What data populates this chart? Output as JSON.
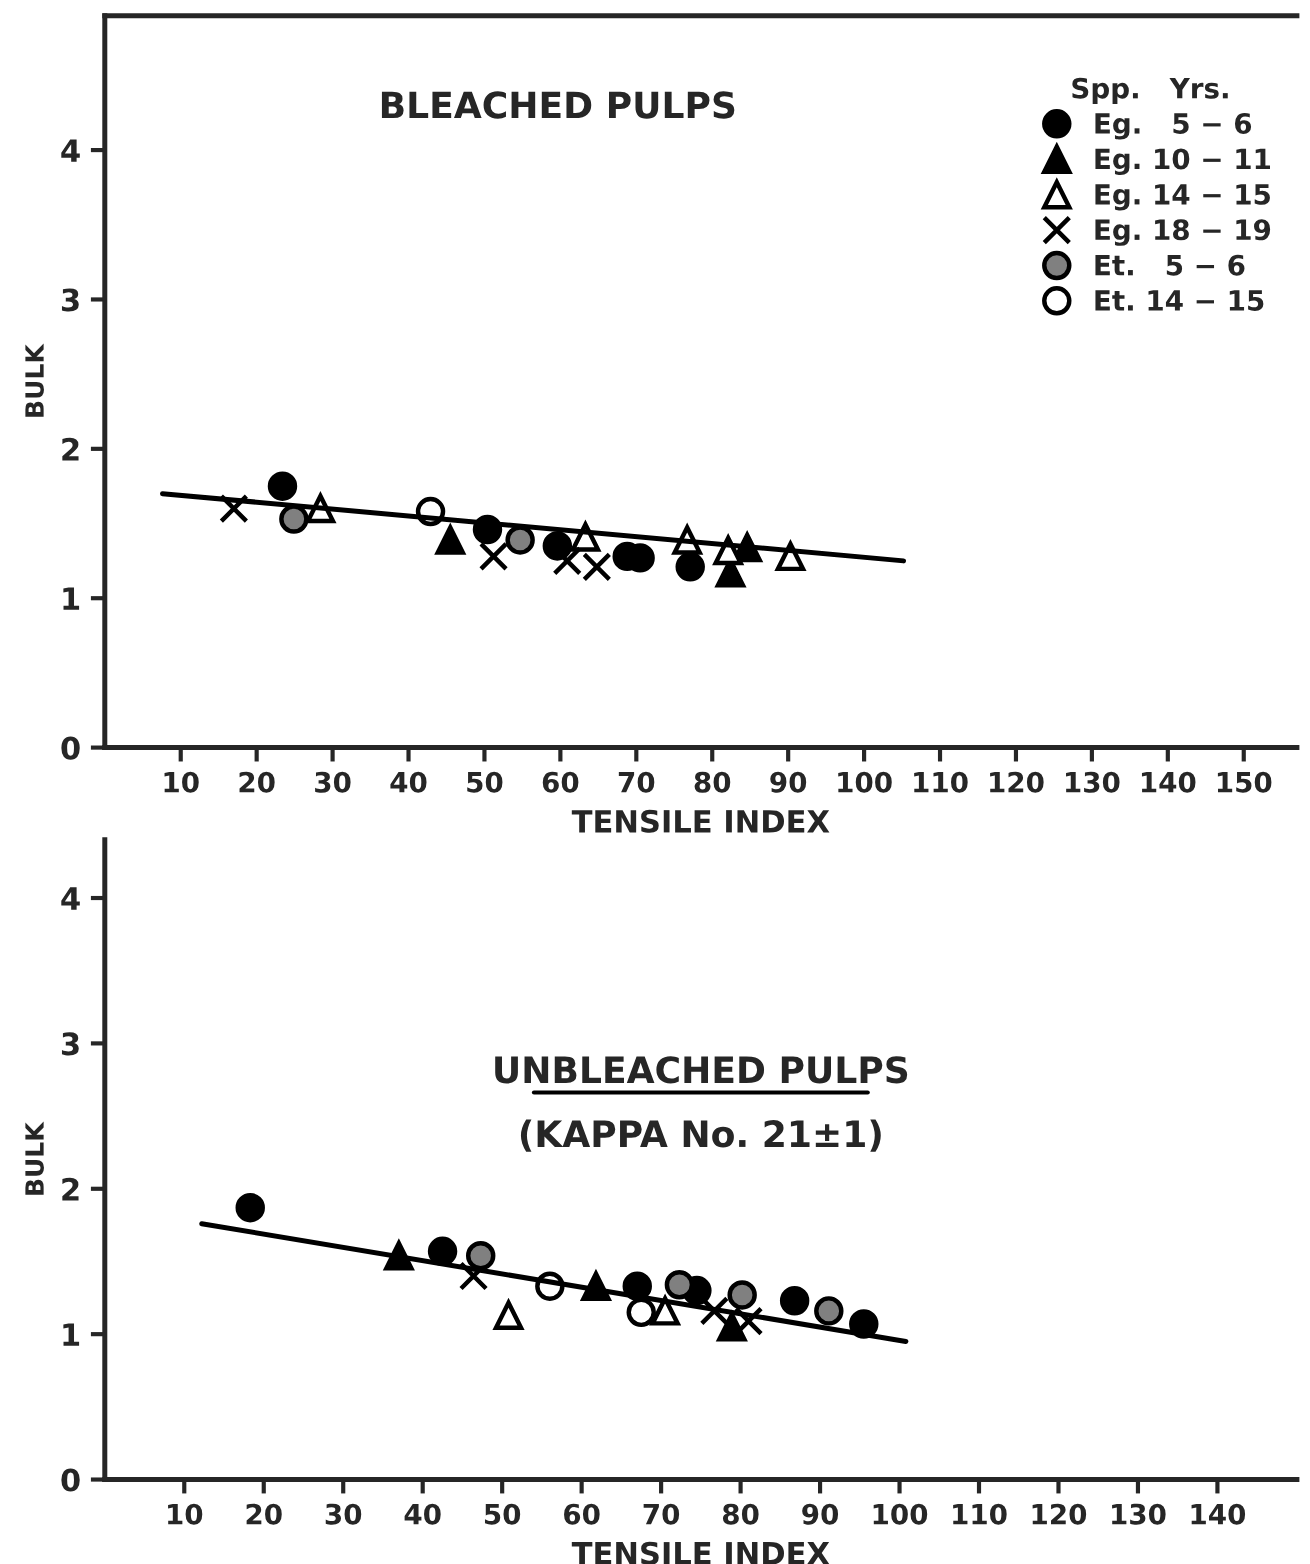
{
  "chart_data": [
    {
      "type": "scatter",
      "title": "BLEACHED PULPS",
      "xlabel": "TENSILE INDEX",
      "ylabel": "BULK",
      "legend_title": "Spp.   Yrs.",
      "legend": "top right",
      "grid": false,
      "xlim": [
        0,
        157
      ],
      "ylim": [
        0,
        4.9
      ],
      "xticks": [
        10,
        20,
        30,
        40,
        50,
        60,
        70,
        80,
        90,
        100,
        110,
        120,
        130,
        140,
        150
      ],
      "yticks": [
        0,
        1,
        2,
        3,
        4
      ],
      "series": [
        {
          "name": "Eg.   5 − 6",
          "color": "#000000",
          "marker": "circle",
          "x": [
            23.4,
            50.4,
            59.6,
            68.8,
            70.5,
            77.1
          ],
          "values": [
            1.75,
            1.46,
            1.35,
            1.28,
            1.27,
            1.21
          ]
        },
        {
          "name": "Eg. 10 − 11",
          "color": "#000000",
          "marker": "triangle",
          "x": [
            45.5,
            82.4,
            84.6
          ],
          "values": [
            1.39,
            1.17,
            1.34
          ]
        },
        {
          "name": "Eg. 14 − 15",
          "color": "#ffffff",
          "marker": "triangle",
          "x": [
            28.4,
            63.3,
            76.7,
            82.1,
            90.3
          ],
          "values": [
            1.6,
            1.41,
            1.39,
            1.32,
            1.28
          ]
        },
        {
          "name": "Eg. 18 − 19",
          "color": "#000000",
          "marker": "cross",
          "x": [
            17,
            51.2,
            60.9,
            64.8
          ],
          "values": [
            1.6,
            1.28,
            1.25,
            1.21
          ]
        },
        {
          "name": "Et.   5 − 6",
          "color": "#808080",
          "marker": "circle",
          "x": [
            24.9,
            54.7
          ],
          "values": [
            1.53,
            1.39
          ]
        },
        {
          "name": "Et. 14 − 15",
          "color": "#ffffff",
          "marker": "circle",
          "x": [
            42.9
          ],
          "values": [
            1.58
          ]
        },
        {
          "type": "line",
          "color": "#000000",
          "x": [
            7.6,
            105.2
          ],
          "values": [
            1.7,
            1.25
          ]
        }
      ]
    },
    {
      "type": "scatter",
      "title": "UNBLEACHED PULPS",
      "subtitle": "(KAPPA No. 21±1)",
      "xlabel": "TENSILE INDEX",
      "ylabel": "BULK",
      "grid": false,
      "xlim": [
        0,
        150
      ],
      "ylim": [
        0,
        4.4
      ],
      "xticks": [
        10,
        20,
        30,
        40,
        50,
        60,
        70,
        80,
        90,
        100,
        110,
        120,
        130,
        140
      ],
      "yticks": [
        0,
        1,
        2,
        3,
        4
      ],
      "series": [
        {
          "color": "#000000",
          "marker": "circle",
          "x": [
            18.3,
            42.5,
            67,
            74.5,
            86.8,
            95.5
          ],
          "values": [
            1.87,
            1.57,
            1.33,
            1.3,
            1.23,
            1.07
          ]
        },
        {
          "color": "#000000",
          "marker": "triangle",
          "x": [
            37,
            61.8,
            78.9
          ],
          "values": [
            1.54,
            1.33,
            1.05
          ]
        },
        {
          "color": "#ffffff",
          "marker": "triangle",
          "x": [
            50.8,
            70.5
          ],
          "values": [
            1.13,
            1.16
          ]
        },
        {
          "color": "#000000",
          "marker": "cross",
          "x": [
            46.4,
            76.7,
            81
          ],
          "values": [
            1.4,
            1.16,
            1.09
          ]
        },
        {
          "color": "#808080",
          "marker": "circle",
          "x": [
            47.3,
            72.3,
            80.2,
            91.1
          ],
          "values": [
            1.54,
            1.34,
            1.27,
            1.16
          ]
        },
        {
          "color": "#ffffff",
          "marker": "circle",
          "x": [
            56,
            67.5
          ],
          "values": [
            1.33,
            1.15
          ]
        },
        {
          "type": "line",
          "color": "#000000",
          "x": [
            12.2,
            100.8
          ],
          "values": [
            1.76,
            0.95
          ]
        }
      ]
    }
  ]
}
